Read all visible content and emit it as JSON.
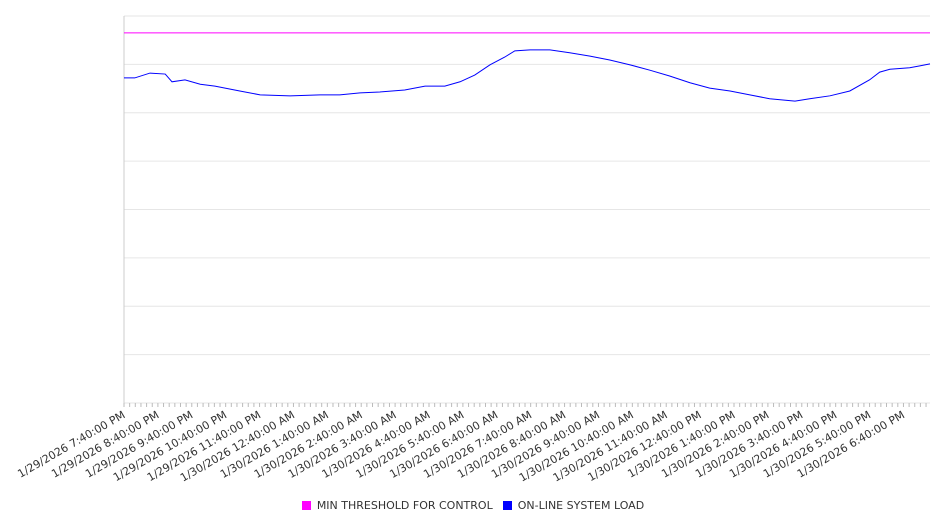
{
  "chart_data": {
    "type": "line",
    "title": "",
    "xlabel": "",
    "ylabel": "",
    "xunit": "minutes since 1/29/2026 7:40:00 PM",
    "xlim": [
      0,
      1427
    ],
    "ylim": [
      0,
      8
    ],
    "grid": true,
    "y_tick_labels_shown": false,
    "x_tick_labels": [
      "1/29/2026 7:40:00 PM",
      "1/29/2026 8:40:00 PM",
      "1/29/2026 9:40:00 PM",
      "1/29/2026 10:40:00 PM",
      "1/29/2026 11:40:00 PM",
      "1/30/2026 12:40:00 AM",
      "1/30/2026 1:40:00 AM",
      "1/30/2026 2:40:00 AM",
      "1/30/2026 3:40:00 AM",
      "1/30/2026 4:40:00 AM",
      "1/30/2026 5:40:00 AM",
      "1/30/2026 6:40:00 AM",
      "1/30/2026 7:40:00 AM",
      "1/30/2026 8:40:00 AM",
      "1/30/2026 9:40:00 AM",
      "1/30/2026 10:40:00 AM",
      "1/30/2026 11:40:00 AM",
      "1/30/2026 12:40:00 PM",
      "1/30/2026 1:40:00 PM",
      "1/30/2026 2:40:00 PM",
      "1/30/2026 3:40:00 PM",
      "1/30/2026 4:40:00 PM",
      "1/30/2026 5:40:00 PM",
      "1/30/2026 6:40:00 PM"
    ],
    "legend_position": "bottom",
    "series": [
      {
        "name": "MIN THRESHOLD FOR CONTROL",
        "color": "#ff00ff",
        "x": [
          0,
          1427
        ],
        "y": [
          7.65,
          7.65
        ]
      },
      {
        "name": "ON-LINE SYSTEM LOAD",
        "color": "#0000ff",
        "x": [
          0,
          19,
          46,
          73,
          85,
          108,
          135,
          161,
          205,
          241,
          294,
          347,
          382,
          418,
          453,
          497,
          533,
          568,
          595,
          621,
          648,
          674,
          692,
          719,
          754,
          789,
          825,
          860,
          896,
          931,
          966,
          1002,
          1037,
          1073,
          1108,
          1143,
          1188,
          1214,
          1250,
          1285,
          1320,
          1338,
          1356,
          1391,
          1409,
          1427
        ],
        "y": [
          6.72,
          6.72,
          6.82,
          6.8,
          6.64,
          6.68,
          6.59,
          6.55,
          6.45,
          6.37,
          6.35,
          6.37,
          6.37,
          6.41,
          6.43,
          6.47,
          6.55,
          6.55,
          6.64,
          6.78,
          6.99,
          7.15,
          7.28,
          7.3,
          7.3,
          7.24,
          7.17,
          7.09,
          6.99,
          6.88,
          6.76,
          6.62,
          6.51,
          6.45,
          6.37,
          6.29,
          6.24,
          6.29,
          6.35,
          6.45,
          6.68,
          6.84,
          6.9,
          6.93,
          6.97,
          7.01
        ]
      }
    ]
  }
}
